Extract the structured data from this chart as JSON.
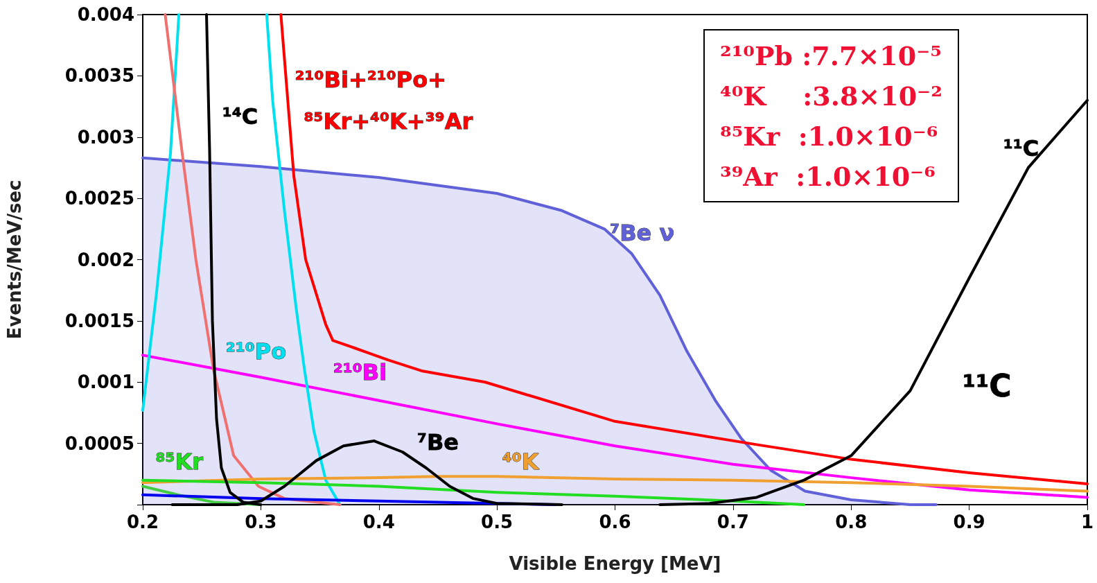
{
  "chart_data": {
    "type": "line",
    "xlabel": "Visible Energy [MeV]",
    "ylabel": "Events/MeV/sec",
    "xlim": [
      0.2,
      1
    ],
    "xticks": [
      0.2,
      0.3,
      0.4,
      0.5,
      0.6,
      0.7,
      0.8,
      0.9,
      1
    ],
    "ylim": [
      0,
      0.004
    ],
    "yticks": [
      {
        "value": 0,
        "label": null
      },
      0.0005,
      0.001,
      0.0015,
      0.002,
      0.0025,
      0.003,
      0.0035,
      0.004
    ],
    "grid": false,
    "marker": "none",
    "line_style": "solid",
    "series": [
      {
        "type": "area",
        "color": "#6060d8",
        "x": [
          0.2,
          0.3,
          0.4,
          0.5,
          0.555,
          0.591,
          0.614,
          0.638,
          0.661,
          0.685,
          0.707,
          0.732,
          0.761,
          0.8,
          0.85,
          0.872
        ],
        "values": [
          0.00283,
          0.00276,
          0.00267,
          0.00254,
          0.0024,
          0.00225,
          0.00205,
          0.00171,
          0.00125,
          0.00085,
          0.00054,
          0.00028,
          0.00011,
          4e-05,
          0,
          0
        ]
      },
      {
        "color": "#ff0000",
        "x": [
          0.317,
          0.328,
          0.338,
          0.355,
          0.361,
          0.379,
          0.408,
          0.437,
          0.49,
          0.6,
          0.72,
          0.8,
          0.9,
          1
        ],
        "values": [
          0.004,
          0.00268,
          0.002,
          0.00147,
          0.00134,
          0.00128,
          0.00118,
          0.00109,
          0.001,
          0.00068,
          0.00049,
          0.00037,
          0.00026,
          0.00017
        ]
      },
      {
        "color": "#ff00ff",
        "x": [
          0.2,
          0.3,
          0.4,
          0.5,
          0.6,
          0.7,
          0.8,
          0.9,
          1
        ],
        "values": [
          0.00122,
          0.00104,
          0.00085,
          0.00066,
          0.00048,
          0.00033,
          0.00022,
          0.00012,
          6e-05
        ]
      },
      {
        "color": "#00e0ee",
        "x": [
          0.2,
          0.2118,
          0.2235,
          0.2306,
          0.268,
          0.305,
          0.31,
          0.32,
          0.33,
          0.337,
          0.345,
          0.355,
          0.367
        ],
        "values": [
          0.00077,
          0.00174,
          0.00287,
          0.004,
          null,
          0.004,
          0.0033,
          0.0024,
          0.0016,
          0.0011,
          0.0006,
          0.0002,
          0
        ]
      },
      {
        "color": "#f07070",
        "x": [
          0.219,
          0.233,
          0.245,
          0.26,
          0.277,
          0.298,
          0.32,
          0.367
        ],
        "values": [
          0.004,
          0.0029,
          0.002,
          0.0011,
          0.0004,
          0.00015,
          5e-05,
          0
        ]
      },
      {
        "color": "#f0a030",
        "x": [
          0.2,
          0.3,
          0.4,
          0.45,
          0.5,
          0.6,
          0.7,
          0.8,
          0.9,
          1
        ],
        "values": [
          0.00018,
          0.00021,
          0.00022,
          0.00023,
          0.00023,
          0.00021,
          0.0002,
          0.00018,
          0.00015,
          0.00011
        ]
      },
      {
        "color": "#22dd22",
        "x": [
          0.2,
          0.3,
          0.4,
          0.5,
          0.6,
          0.7,
          0.76
        ],
        "values": [
          0.0002,
          0.00018,
          0.00015,
          0.0001,
          7e-05,
          3e-05,
          0
        ]
      },
      {
        "color": "#44cc44",
        "x": [
          0.2,
          0.23,
          0.26,
          0.3
        ],
        "values": [
          0.00015,
          8e-05,
          2e-05,
          0
        ]
      },
      {
        "color": "#0000ee",
        "x": [
          0.2,
          0.3,
          0.4,
          0.5,
          0.55
        ],
        "values": [
          8e-05,
          5e-05,
          3e-05,
          1e-05,
          0
        ]
      },
      {
        "color": "#000000",
        "x": [
          0.254,
          0.2566,
          0.259,
          0.2625,
          0.2666,
          0.274,
          0.285,
          0.3
        ],
        "values": [
          0.004,
          0.0029,
          0.0015,
          0.0007,
          0.0003,
          0.0001,
          2e-05,
          0
        ]
      },
      {
        "color": "#000000",
        "x": [
          0.225,
          0.28,
          0.3,
          0.32,
          0.347,
          0.37,
          0.396,
          0.42,
          0.44,
          0.46,
          0.48,
          0.5,
          0.555
        ],
        "values": [
          0,
          0,
          3e-05,
          0.00015,
          0.00036,
          0.00048,
          0.00052,
          0.00043,
          0.0003,
          0.00015,
          5e-05,
          1e-05,
          0
        ]
      },
      {
        "color": "#000000",
        "x": [
          0.638,
          0.68,
          0.72,
          0.76,
          0.8,
          0.85,
          0.9,
          0.95,
          1
        ],
        "values": [
          0,
          1e-05,
          6e-05,
          0.0002,
          0.0004,
          0.00093,
          0.00185,
          0.00275,
          0.0033
        ]
      }
    ],
    "annotations": [
      "¹⁴C",
      "²¹⁰Bi+²¹⁰Po+",
      "⁸⁵Kr+⁴⁰K+³⁹Ar",
      "²¹⁰Po",
      "²¹⁰Bi",
      "⁸⁵Kr",
      "⁷Be",
      "⁴⁰K",
      "⁷Be ν",
      "¹¹C",
      "¹¹C",
      "²¹⁰Pb :7.7×10⁻⁵",
      "⁴⁰K    :3.8×10⁻²",
      "⁸⁵Kr  :1.0×10⁻⁶",
      "³⁹Ar  :1.0×10⁻⁶"
    ]
  }
}
